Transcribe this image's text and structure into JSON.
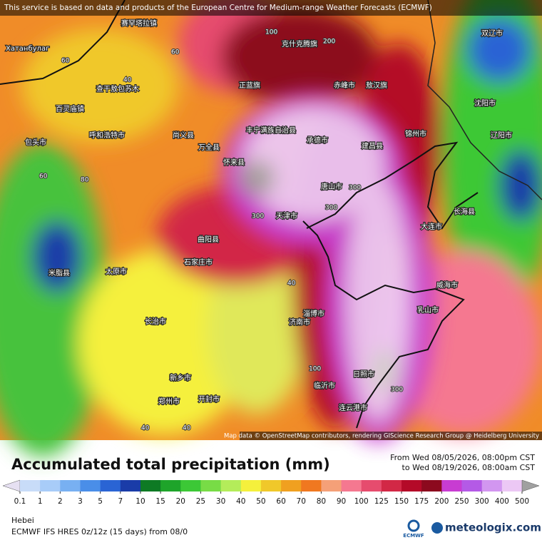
{
  "header": {
    "notice": "This service is based on data and products of the European Centre for Medium-range Weather Forecasts (ECMWF)"
  },
  "map": {
    "attribution": "Map data © OpenStreetMap contributors, rendering GIScience Research Group @ Heidelberg University",
    "places": [
      "Хатанбулаг",
      "赛罕塔拉镇",
      "克什克腾旗",
      "双辽市",
      "查干敖包苏木",
      "百灵庙镇",
      "正蓝旗",
      "赤峰市",
      "敖汉旗",
      "沈阳市",
      "包头市",
      "呼和浩特市",
      "尚义县",
      "万全县",
      "丰宁满族自治县",
      "承德市",
      "建昌县",
      "锦州市",
      "怀来县",
      "唐山市",
      "天津市",
      "大连市",
      "长海县",
      "曲阳县",
      "石家庄市",
      "太原市",
      "淄博市",
      "济南市",
      "威海市",
      "乳山市",
      "长治市",
      "新乡市",
      "郑州市",
      "开封市",
      "日照市",
      "临沂市",
      "连云港市",
      "米脂县",
      "辽阳市"
    ],
    "contours": [
      100,
      200,
      300,
      300,
      300,
      60,
      60,
      40,
      60,
      80,
      40,
      100,
      300,
      40,
      40
    ]
  },
  "legend": {
    "title": "Accumulated total precipitation (mm)",
    "from": "From Wed 08/05/2026, 08:00pm CST",
    "to": "to Wed 08/19/2026, 08:00am CST",
    "levels": [
      0.1,
      1,
      2,
      3,
      5,
      7,
      10,
      15,
      20,
      25,
      30,
      40,
      50,
      60,
      70,
      80,
      90,
      100,
      125,
      150,
      175,
      200,
      250,
      300,
      400,
      500
    ],
    "colors": [
      "#e6e0f2",
      "#c8dcf8",
      "#a8ccf8",
      "#78b0f2",
      "#4a8ee8",
      "#2a64d4",
      "#1a3ca8",
      "#0e7a24",
      "#1ea42a",
      "#3cc836",
      "#78dc46",
      "#b4ec5a",
      "#f5f03c",
      "#f0c82a",
      "#f0a020",
      "#f07820",
      "#f5a078",
      "#f57890",
      "#e64c6e",
      "#d22846",
      "#b40a28",
      "#8c0a1e",
      "#c83cd2",
      "#b45ae6",
      "#d296f0",
      "#ecc8f5",
      "#d2d2d2",
      "#a0a0a0"
    ]
  },
  "footer": {
    "region": "Hebei",
    "model": "ECMWF IFS HRES 0z/12z (15 days) from 08/0",
    "logo": "ECMWF",
    "brand": "meteologix.com"
  }
}
